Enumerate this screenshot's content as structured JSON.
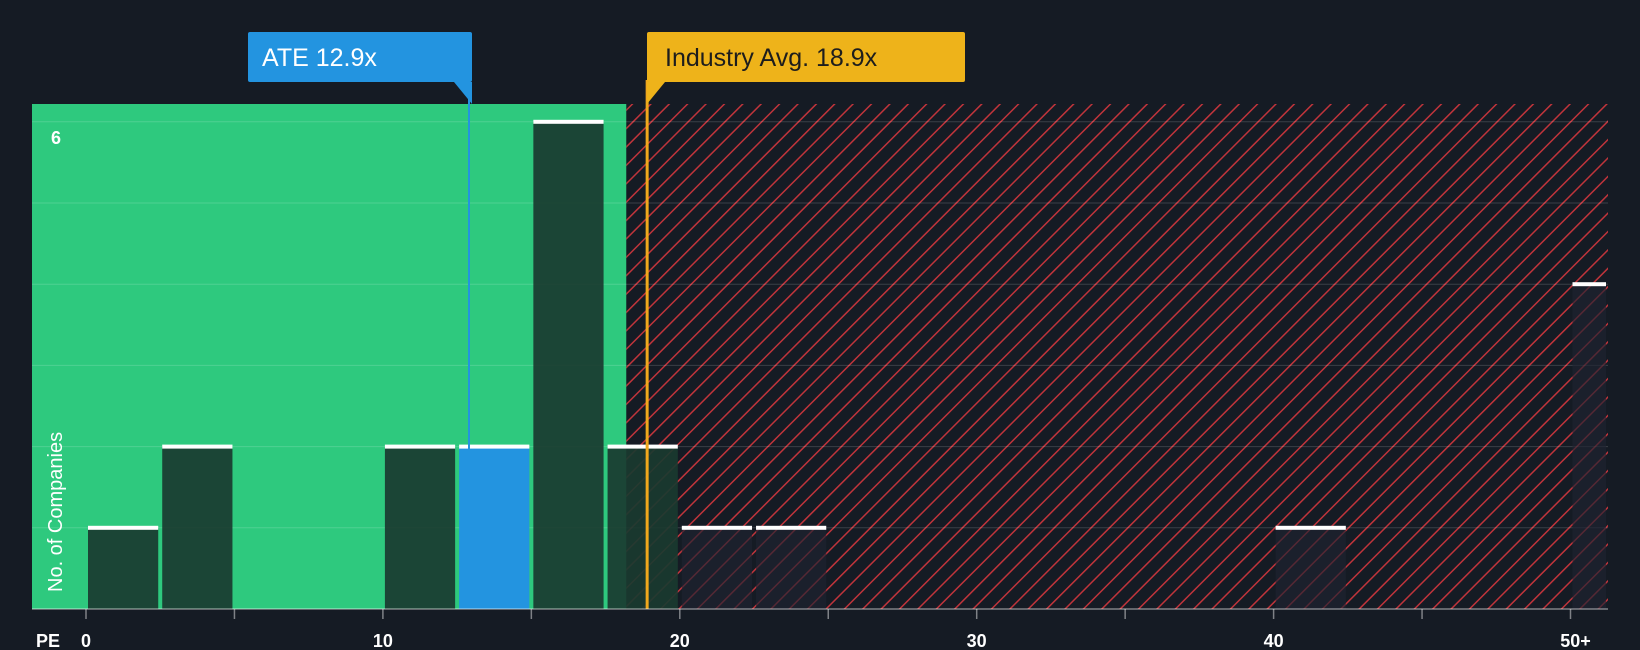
{
  "colors": {
    "background": "#151b24",
    "undervalued_zone": "#2ec97e",
    "overvalued_stripe": "#c0343b",
    "company_bar": "#2394e0",
    "bar_dark": "#1a3a30",
    "bar_cap": "#ffffff",
    "company_callout": "#2394e0",
    "industry_callout": "#eeb31a",
    "industry_line": "#f0a81c"
  },
  "labels": {
    "company_callout": "ATE 12.9x",
    "industry_callout": "Industry Avg. 18.9x"
  },
  "chart_data": {
    "type": "bar",
    "title": "",
    "xlabel": "PE",
    "ylabel": "No. of Companies",
    "x_ticks": [
      "0",
      "10",
      "20",
      "30",
      "40",
      "50+"
    ],
    "y_ticks": [
      "6"
    ],
    "xlim": [
      0,
      51.5
    ],
    "ylim": [
      0,
      6.2
    ],
    "company_value": 12.9,
    "industry_avg": 18.9,
    "fair_value_boundary": 18.2,
    "bins": [
      {
        "x0": 0,
        "x1": 2.5,
        "count": 1
      },
      {
        "x0": 2.5,
        "x1": 5,
        "count": 2
      },
      {
        "x0": 10,
        "x1": 12.5,
        "count": 2
      },
      {
        "x0": 12.5,
        "x1": 15,
        "count": 2,
        "highlight": true
      },
      {
        "x0": 15,
        "x1": 17.5,
        "count": 6
      },
      {
        "x0": 17.5,
        "x1": 20,
        "count": 2
      },
      {
        "x0": 20,
        "x1": 22.5,
        "count": 1
      },
      {
        "x0": 22.5,
        "x1": 25,
        "count": 1
      },
      {
        "x0": 40,
        "x1": 42.5,
        "count": 1
      },
      {
        "x0": 50,
        "x1": 51.5,
        "count": 4
      }
    ]
  }
}
